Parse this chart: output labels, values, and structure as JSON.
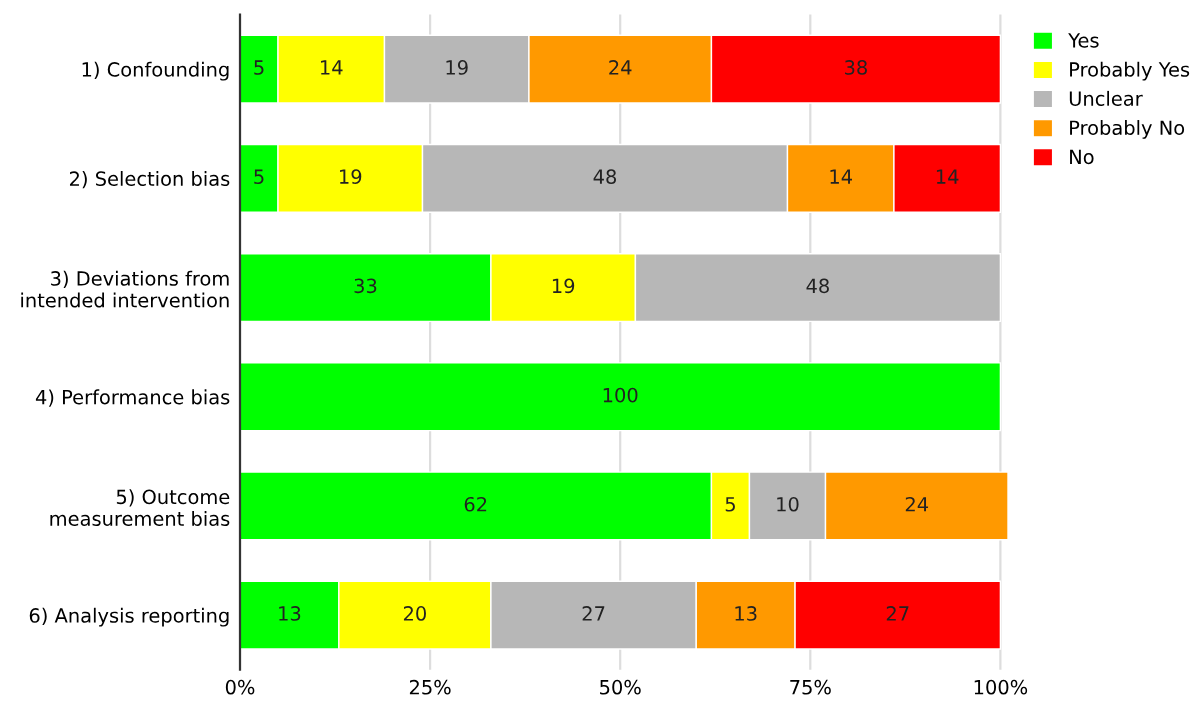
{
  "chart_data": {
    "type": "bar",
    "orientation": "horizontal",
    "stacked": true,
    "categories": [
      "1) Confounding",
      "2) Selection bias",
      "3) Deviations from\nintended intervention",
      "4) Performance bias",
      "5) Outcome\nmeasurement bias",
      "6) Analysis reporting"
    ],
    "series": [
      {
        "name": "Yes",
        "color": "#00ff00",
        "values": [
          5,
          5,
          33,
          100,
          62,
          13
        ]
      },
      {
        "name": "Probably Yes",
        "color": "#ffff00",
        "values": [
          14,
          19,
          19,
          null,
          5,
          20
        ]
      },
      {
        "name": "Unclear",
        "color": "#b7b7b7",
        "values": [
          19,
          48,
          48,
          null,
          10,
          27
        ]
      },
      {
        "name": "Probably No",
        "color": "#ff9900",
        "values": [
          24,
          14,
          null,
          null,
          24,
          13
        ]
      },
      {
        "name": "No",
        "color": "#ff0000",
        "values": [
          38,
          14,
          null,
          null,
          null,
          27
        ]
      }
    ],
    "xlim": [
      0,
      101
    ],
    "xticks": [
      {
        "value": 0,
        "label": "0%"
      },
      {
        "value": 25,
        "label": "25%"
      },
      {
        "value": 50,
        "label": "50%"
      },
      {
        "value": 75,
        "label": "75%"
      },
      {
        "value": 100,
        "label": "100%"
      }
    ],
    "data_labels": true,
    "grid": "x",
    "legend": "right"
  }
}
